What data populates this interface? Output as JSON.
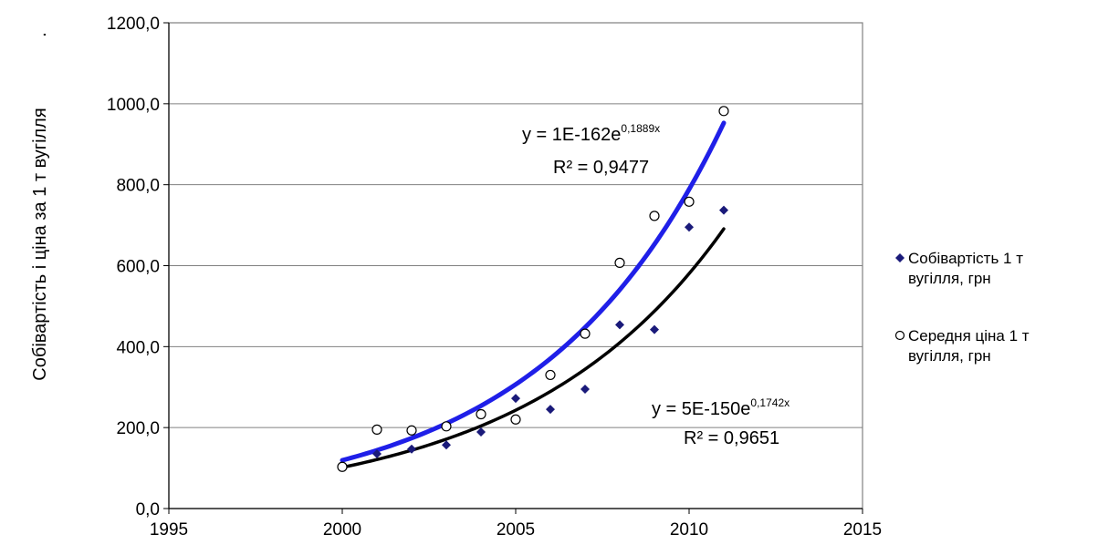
{
  "chart_data": {
    "type": "scatter",
    "title": "",
    "xlabel": "",
    "ylabel": "Собівартість і ціна за 1 т вугілля",
    "ylabel_suffix": ".",
    "xlim": [
      1995,
      2015
    ],
    "ylim": [
      0,
      1200
    ],
    "x_ticks": [
      1995,
      2000,
      2005,
      2010,
      2015
    ],
    "y_ticks": [
      0,
      200,
      400,
      600,
      800,
      1000,
      1200
    ],
    "x_tick_labels": [
      "1995",
      "2000",
      "2005",
      "2010",
      "2015"
    ],
    "y_tick_labels": [
      "0,0",
      "200,0",
      "400,0",
      "600,0",
      "800,0",
      "1000,0",
      "1200,0"
    ],
    "grid": "horizontal",
    "legend_position": "right",
    "series": [
      {
        "name_line1": "Собівартість 1  т",
        "name_line2": "вугілля, грн",
        "marker": "diamond",
        "color": "#1a1a7a",
        "x": [
          2000,
          2001,
          2002,
          2003,
          2004,
          2005,
          2006,
          2007,
          2008,
          2009,
          2010,
          2011
        ],
        "y": [
          102,
          135,
          147,
          157,
          189,
          272,
          245,
          295,
          454,
          442,
          695,
          737
        ],
        "trendline": {
          "type": "exponential",
          "a": 5e-150,
          "b": 0.1742,
          "color": "#000000",
          "equation_prefix": "y = 5E-150e",
          "equation_exponent": "0,1742x",
          "r2_label": "R² = 0,9651"
        }
      },
      {
        "name_line1": "Середня ціна 1 т",
        "name_line2": "вугілля, грн",
        "marker": "circle",
        "color": "#000000",
        "x": [
          2000,
          2001,
          2002,
          2003,
          2004,
          2005,
          2006,
          2007,
          2008,
          2009,
          2010,
          2011
        ],
        "y": [
          103,
          195,
          193,
          203,
          233,
          220,
          330,
          432,
          607,
          723,
          758,
          982
        ],
        "trendline": {
          "type": "exponential",
          "a": 1e-162,
          "b": 0.1889,
          "color": "#1f1fe8",
          "equation_prefix": "y = 1E-162e",
          "equation_exponent": "0,1889x",
          "r2_label": "R² = 0,9477"
        }
      }
    ]
  }
}
